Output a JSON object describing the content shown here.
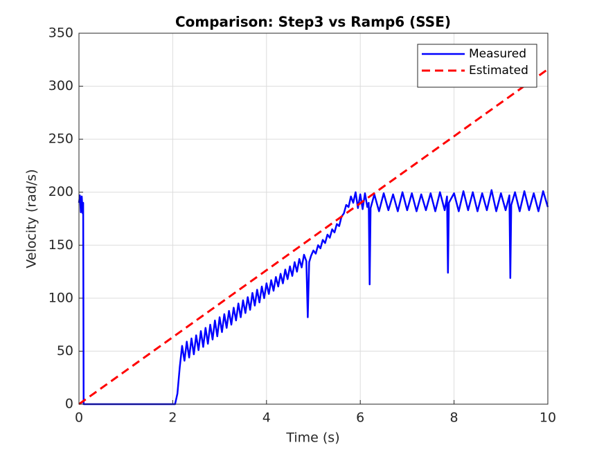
{
  "chart_data": {
    "type": "line",
    "title": "Comparison: Step3 vs Ramp6 (SSE)",
    "x_label": "Time (s)",
    "y_label": "Velocity (rad/s)",
    "xlim": [
      0,
      10
    ],
    "xticks": [
      0,
      2,
      4,
      6,
      8,
      10
    ],
    "ylim": [
      0,
      350
    ],
    "yticks": [
      0,
      50,
      100,
      150,
      200,
      250,
      300,
      350
    ],
    "grid": true,
    "legend": "top-right",
    "series": [
      {
        "name": "Measured",
        "color": "#0000ff",
        "dash": "solid",
        "x": [
          0,
          0.02,
          0.04,
          0.06,
          0.08,
          0.09,
          0.1,
          1.4,
          2.05,
          2.1,
          2.15,
          2.2,
          2.25,
          2.3,
          2.35,
          2.4,
          2.45,
          2.5,
          2.55,
          2.6,
          2.65,
          2.7,
          2.75,
          2.8,
          2.85,
          2.9,
          2.95,
          3,
          3.05,
          3.1,
          3.15,
          3.2,
          3.25,
          3.3,
          3.35,
          3.4,
          3.45,
          3.5,
          3.55,
          3.6,
          3.65,
          3.7,
          3.75,
          3.8,
          3.85,
          3.9,
          3.95,
          4,
          4.05,
          4.1,
          4.15,
          4.2,
          4.25,
          4.3,
          4.35,
          4.4,
          4.45,
          4.5,
          4.55,
          4.6,
          4.65,
          4.7,
          4.75,
          4.8,
          4.85,
          4.88,
          4.91,
          4.95,
          5,
          5.05,
          5.1,
          5.15,
          5.2,
          5.25,
          5.3,
          5.35,
          5.4,
          5.45,
          5.5,
          5.55,
          5.6,
          5.65,
          5.7,
          5.75,
          5.8,
          5.85,
          5.9,
          5.95,
          6,
          6.05,
          6.1,
          6.15,
          6.18,
          6.2,
          6.22,
          6.3,
          6.4,
          6.5,
          6.6,
          6.7,
          6.8,
          6.9,
          7,
          7.1,
          7.2,
          7.3,
          7.4,
          7.5,
          7.6,
          7.7,
          7.8,
          7.85,
          7.87,
          7.89,
          8,
          8.1,
          8.2,
          8.3,
          8.4,
          8.5,
          8.6,
          8.7,
          8.8,
          8.9,
          9,
          9.1,
          9.18,
          9.2,
          9.22,
          9.3,
          9.4,
          9.5,
          9.6,
          9.7,
          9.8,
          9.9,
          10
        ],
        "values": [
          190,
          197,
          181,
          196,
          180,
          190,
          0,
          0,
          0,
          10,
          35,
          55,
          41,
          59,
          44,
          62,
          47,
          65,
          51,
          69,
          54,
          72,
          57,
          75,
          61,
          79,
          64,
          82,
          68,
          85,
          72,
          88,
          75,
          91,
          79,
          95,
          82,
          98,
          86,
          101,
          89,
          105,
          93,
          108,
          96,
          111,
          100,
          114,
          104,
          117,
          107,
          120,
          111,
          123,
          114,
          127,
          118,
          130,
          121,
          134,
          125,
          137,
          129,
          141,
          135,
          82,
          134,
          140,
          145,
          142,
          150,
          147,
          155,
          152,
          160,
          157,
          165,
          162,
          170,
          168,
          177,
          180,
          188,
          186,
          196,
          190,
          200,
          185,
          198,
          184,
          199,
          186,
          190,
          113,
          185,
          198,
          182,
          199,
          183,
          198,
          182,
          200,
          183,
          199,
          182,
          198,
          183,
          199,
          182,
          200,
          183,
          196,
          124,
          190,
          199,
          182,
          201,
          183,
          200,
          182,
          199,
          183,
          202,
          182,
          199,
          183,
          197,
          119,
          188,
          200,
          182,
          201,
          183,
          199,
          182,
          201,
          186
        ]
      },
      {
        "name": "Estimated",
        "color": "#ff0000",
        "dash": "dashed",
        "x": [
          0,
          10
        ],
        "values": [
          0,
          316
        ]
      }
    ]
  }
}
